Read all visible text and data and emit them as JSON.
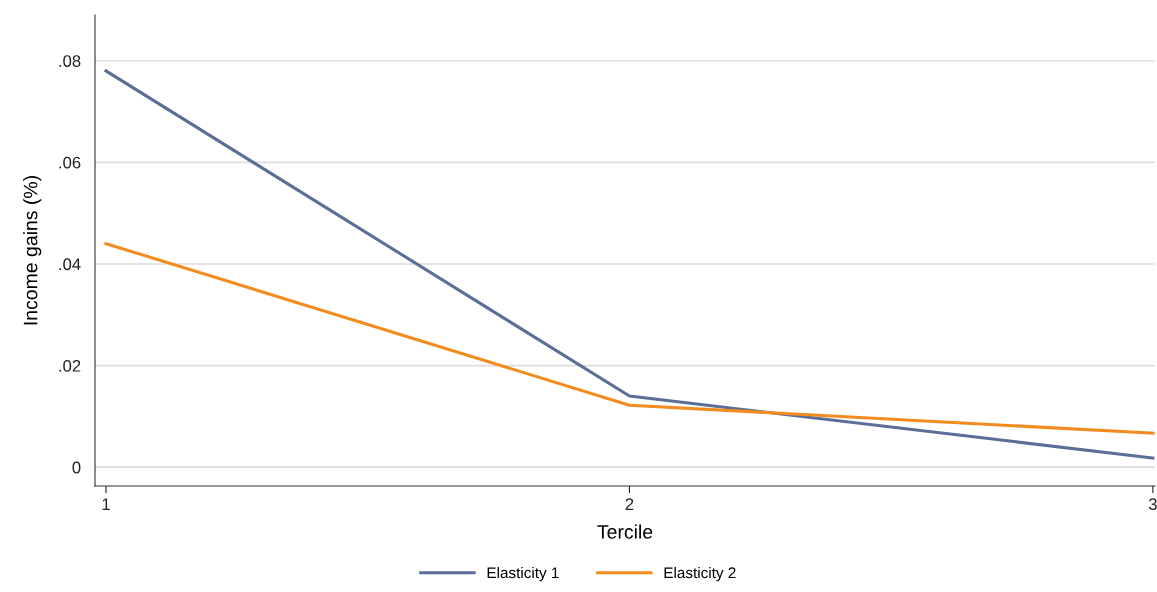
{
  "chart_data": {
    "type": "line",
    "xlabel": "Tercile",
    "ylabel": "Income gains (%)",
    "x": [
      1,
      2,
      3
    ],
    "series": [
      {
        "name": "Elasticity 1",
        "color": "#5b6e98",
        "values": [
          0.078,
          0.014,
          0.0018
        ]
      },
      {
        "name": "Elasticity 2",
        "color": "#f28c1e",
        "values": [
          0.044,
          0.0122,
          0.0067
        ]
      }
    ],
    "xlim": [
      0.979,
      3.004
    ],
    "xticks": [
      1,
      2,
      3
    ],
    "ylim": [
      -0.0037,
      0.089
    ],
    "yticks": [
      {
        "value": 0,
        "label": "0"
      },
      {
        "value": 0.02,
        "label": ".02"
      },
      {
        "value": 0.04,
        "label": ".04"
      },
      {
        "value": 0.06,
        "label": ".06"
      },
      {
        "value": 0.08,
        "label": ".08"
      }
    ],
    "grid": "y",
    "legend": "bottom",
    "marker": "none",
    "line_style": "solid"
  }
}
